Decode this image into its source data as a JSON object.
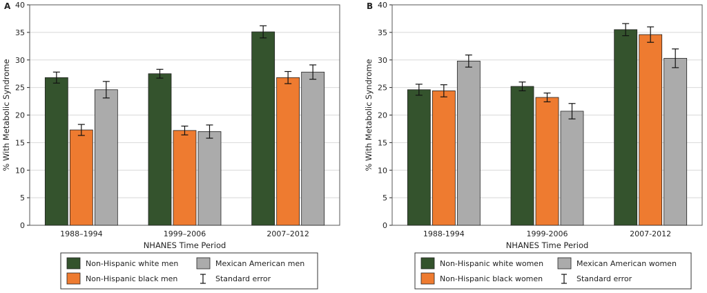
{
  "colors": {
    "white": "#34532d",
    "black": "#ee7b30",
    "mexican": "#ababab",
    "bar_stroke": "#222222",
    "grid": "#d8d8d8"
  },
  "chart_data": [
    {
      "type": "bar",
      "panel_label": "A",
      "categories": [
        "1988–1994",
        "1999–2006",
        "2007–2012"
      ],
      "xlabel": "NHANES Time Period",
      "ylabel": "% With Metabolic Syndrome",
      "ylim": [
        0,
        40
      ],
      "yticks": [
        0,
        5,
        10,
        15,
        20,
        25,
        30,
        35,
        40
      ],
      "grid": true,
      "legend_position": "bottom",
      "error_bars": "Standard error",
      "series": [
        {
          "name": "Non-Hispanic white men",
          "color_key": "white",
          "values": [
            26.8,
            27.5,
            35.1
          ],
          "errors": [
            1.0,
            0.8,
            1.1
          ]
        },
        {
          "name": "Non-Hispanic black men",
          "color_key": "black",
          "values": [
            17.3,
            17.2,
            26.8
          ],
          "errors": [
            1.0,
            0.8,
            1.1
          ]
        },
        {
          "name": "Mexican American men",
          "color_key": "mexican",
          "values": [
            24.6,
            17.0,
            27.8
          ],
          "errors": [
            1.5,
            1.2,
            1.3
          ]
        }
      ],
      "legend": {
        "items": [
          "Non-Hispanic white men",
          "Mexican American men",
          "Non-Hispanic black men"
        ],
        "error_label": "Standard error"
      }
    },
    {
      "type": "bar",
      "panel_label": "B",
      "categories": [
        "1988-1994",
        "1999-2006",
        "2007-2012"
      ],
      "xlabel": "NHANES Time Period",
      "ylabel": "% With Metabolic Syndrome",
      "ylim": [
        0,
        40
      ],
      "yticks": [
        0,
        5,
        10,
        15,
        20,
        25,
        30,
        35,
        40
      ],
      "grid": true,
      "legend_position": "bottom",
      "error_bars": "Standard error",
      "series": [
        {
          "name": "Non-Hispanic white women",
          "color_key": "white",
          "values": [
            24.6,
            25.2,
            35.5
          ],
          "errors": [
            1.0,
            0.8,
            1.1
          ]
        },
        {
          "name": "Non-Hispanic black women",
          "color_key": "black",
          "values": [
            24.4,
            23.2,
            34.6
          ],
          "errors": [
            1.1,
            0.8,
            1.4
          ]
        },
        {
          "name": "Mexican American women",
          "color_key": "mexican",
          "values": [
            29.8,
            20.7,
            30.3
          ],
          "errors": [
            1.1,
            1.4,
            1.7
          ]
        }
      ],
      "legend": {
        "items": [
          "Non-Hispanic white women",
          "Mexican American women",
          "Non-Hispanic black women"
        ],
        "error_label": "Standard error"
      }
    }
  ]
}
